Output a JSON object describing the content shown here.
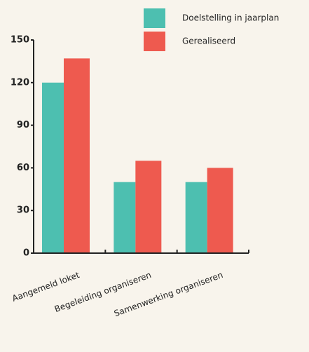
{
  "chart_data": {
    "type": "bar",
    "categories": [
      "Aangemeld loket",
      "Begeleiding organiseren",
      "Samenwerking organiseren"
    ],
    "series": [
      {
        "name": "Doelstelling in jaarplan",
        "color": "#4dbfb0",
        "values": [
          120,
          50,
          50
        ]
      },
      {
        "name": "Gerealiseerd",
        "color": "#ee5a4f",
        "values": [
          137,
          65,
          60
        ]
      }
    ],
    "ylim": [
      0,
      150
    ],
    "yticks": [
      0,
      30,
      60,
      90,
      120,
      150
    ],
    "legend": "top-right"
  }
}
